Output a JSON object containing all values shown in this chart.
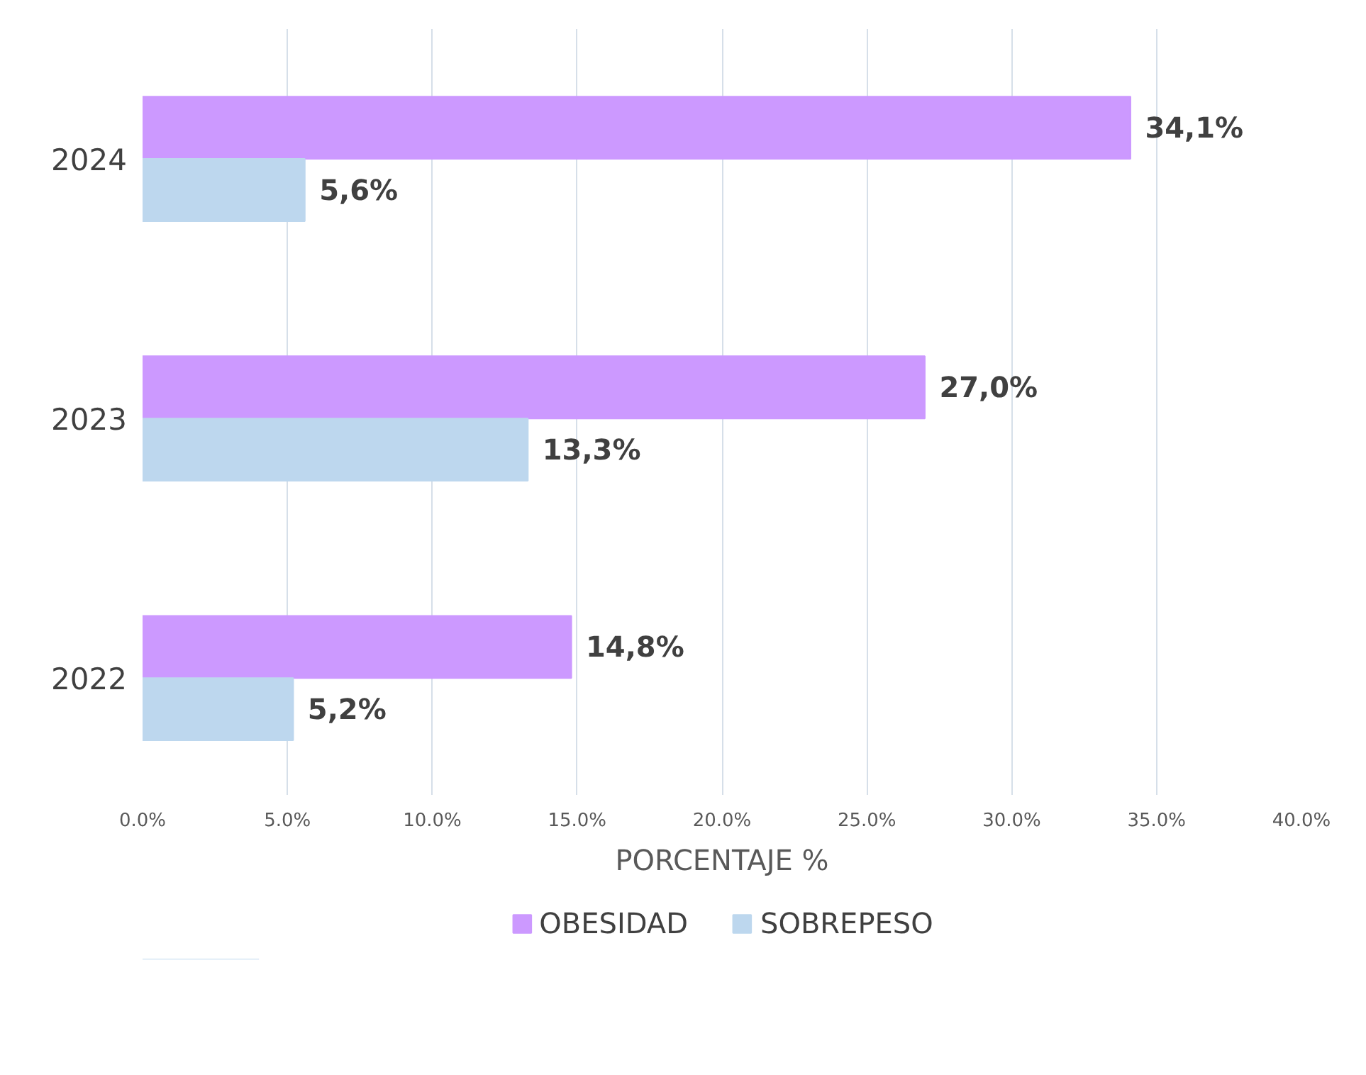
{
  "chart_data": {
    "type": "bar",
    "orientation": "horizontal",
    "categories": [
      "2024",
      "2023",
      "2022"
    ],
    "series": [
      {
        "name": "OBESIDAD",
        "color": "#cc99ff",
        "values": [
          34.1,
          27.0,
          14.8
        ],
        "value_labels": [
          "34,1%",
          "27,0%",
          "14,8%"
        ]
      },
      {
        "name": "SOBREPESO",
        "color": "#bdd7ee",
        "values": [
          5.6,
          13.3,
          5.2
        ],
        "value_labels": [
          "5,6%",
          "13,3%",
          "5,2%"
        ]
      }
    ],
    "xlabel": "PORCENTAJE %",
    "xlim": [
      0,
      40
    ],
    "xticks": [
      {
        "value": 0,
        "label": "0.0%"
      },
      {
        "value": 5,
        "label": "5.0%"
      },
      {
        "value": 10,
        "label": "10.0%"
      },
      {
        "value": 15,
        "label": "15.0%"
      },
      {
        "value": 20,
        "label": "20.0%"
      },
      {
        "value": 25,
        "label": "25.0%"
      },
      {
        "value": 30,
        "label": "30.0%"
      },
      {
        "value": 35,
        "label": "35.0%"
      },
      {
        "value": 40,
        "label": "40.0%"
      }
    ],
    "grid": "x",
    "legend": "bottom"
  }
}
